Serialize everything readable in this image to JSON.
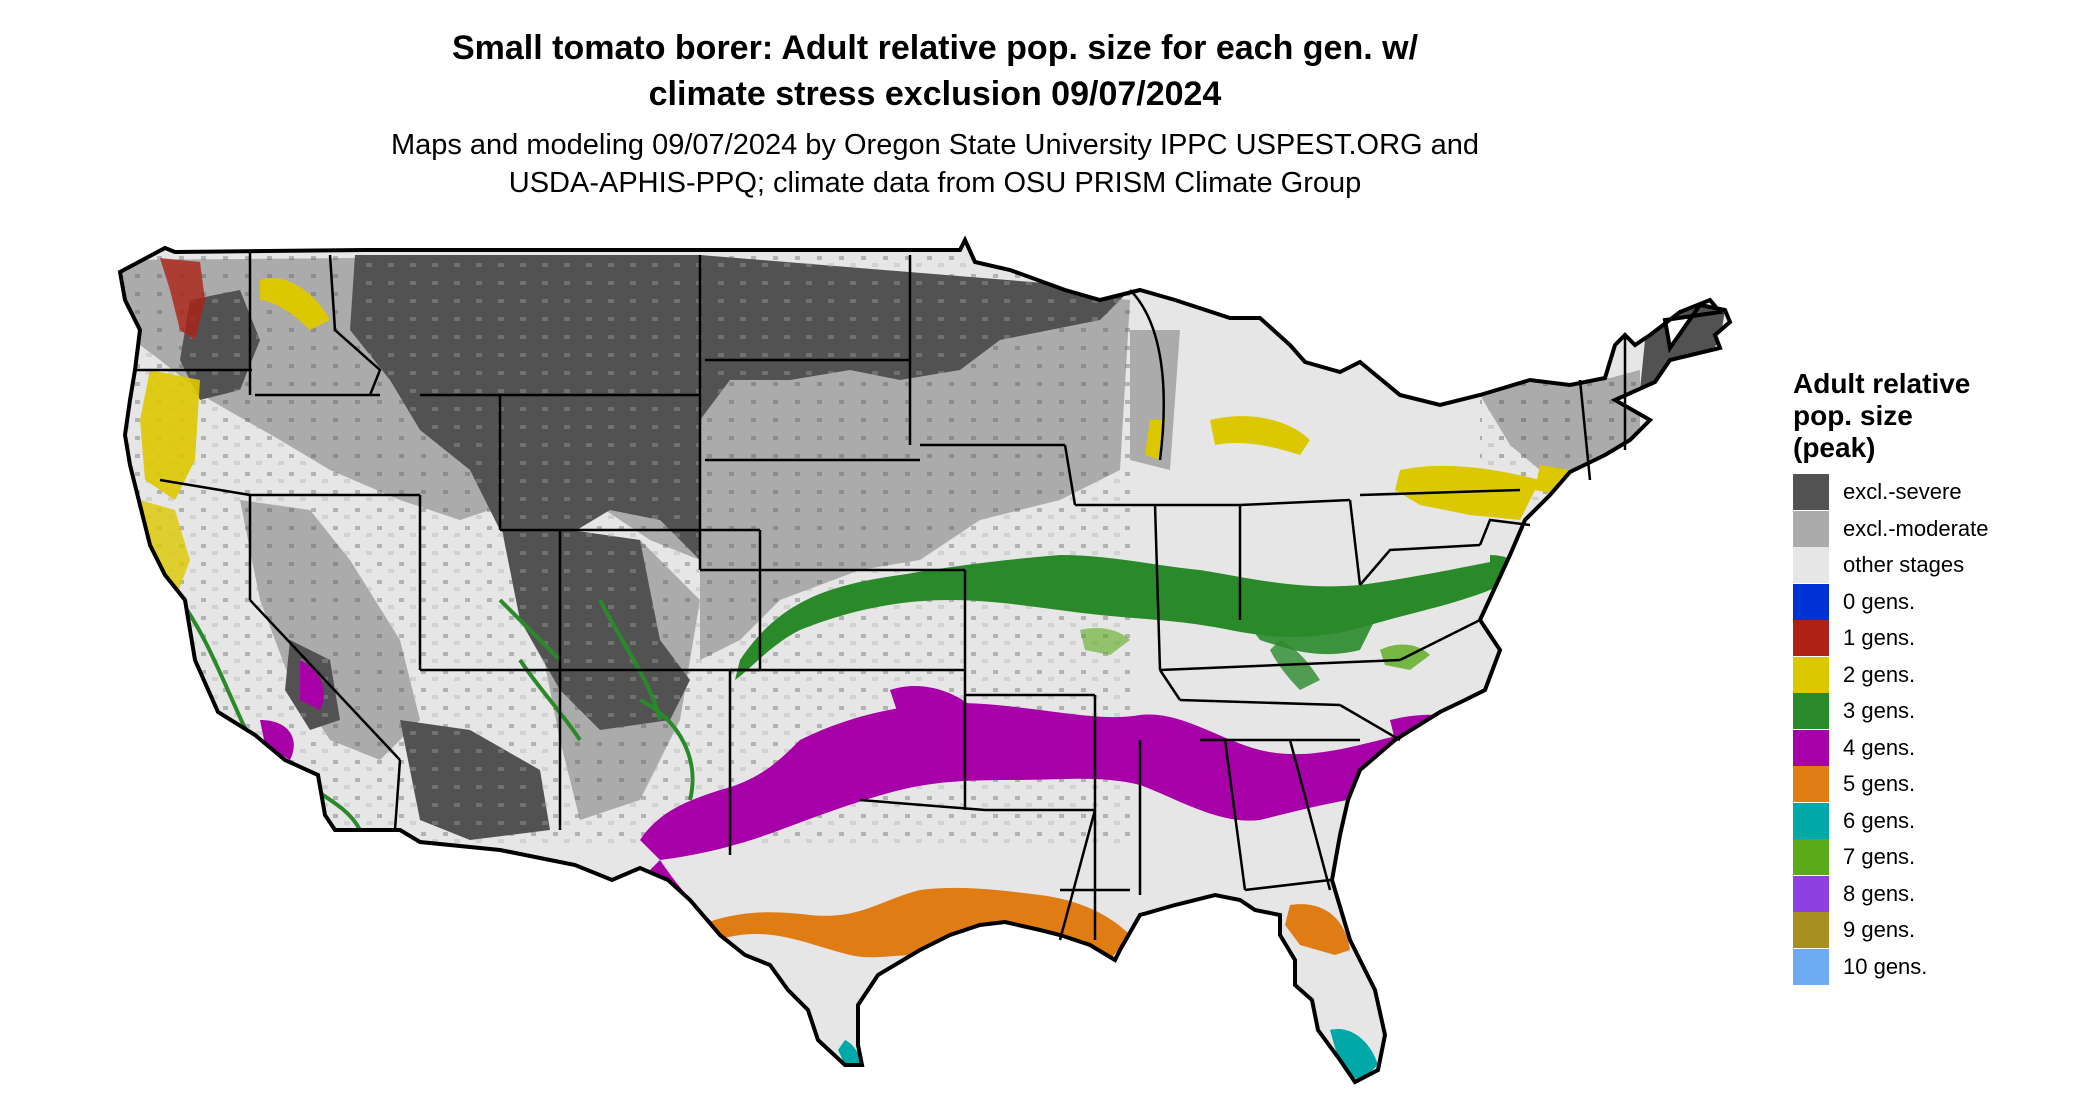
{
  "title_line1": "Small tomato borer: Adult relative pop. size for each gen. w/",
  "title_line2": "climate stress exclusion 09/07/2024",
  "subtitle_line1": "Maps and modeling 09/07/2024 by Oregon State University IPPC USPEST.ORG and",
  "subtitle_line2": "USDA-APHIS-PPQ; climate data from OSU PRISM Climate Group",
  "legend": {
    "title_line1": "Adult relative",
    "title_line2": "pop. size",
    "title_line3": "(peak)",
    "items": [
      {
        "label": "excl.-severe",
        "color": "#525252"
      },
      {
        "label": "excl.-moderate",
        "color": "#ababab"
      },
      {
        "label": "other stages",
        "color": "#e6e6e6"
      },
      {
        "label": "0 gens.",
        "color": "#0033d6"
      },
      {
        "label": "1 gens.",
        "color": "#ad2214"
      },
      {
        "label": "2 gens.",
        "color": "#dcc800"
      },
      {
        "label": "3 gens.",
        "color": "#2a8a2a"
      },
      {
        "label": "4 gens.",
        "color": "#a800a8"
      },
      {
        "label": "5 gens.",
        "color": "#e07c14"
      },
      {
        "label": "6 gens.",
        "color": "#00a8a8"
      },
      {
        "label": "7 gens.",
        "color": "#5aaa1a"
      },
      {
        "label": "8 gens.",
        "color": "#8e40e0"
      },
      {
        "label": "9 gens.",
        "color": "#a89020"
      },
      {
        "label": "10 gens.",
        "color": "#6eaaf2"
      }
    ]
  }
}
